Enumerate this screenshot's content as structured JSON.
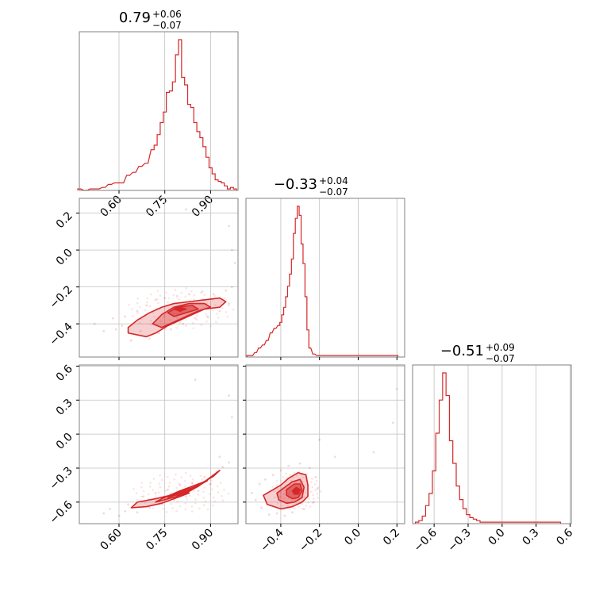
{
  "colors": {
    "accent": "#d62728",
    "grid": "#c0c0c0",
    "frame": "#808080"
  },
  "chart_data": [
    {
      "type": "histogram",
      "parameter_index": 0,
      "title": {
        "value": "0.79",
        "upper": "+0.06",
        "lower": "−0.07"
      },
      "x_ticks": [
        "0.60",
        "0.75",
        "0.90"
      ],
      "xlim": [
        0.47,
        0.99
      ],
      "grid": true,
      "x": [
        0.47,
        0.49,
        0.51,
        0.53,
        0.55,
        0.57,
        0.59,
        0.61,
        0.63,
        0.65,
        0.67,
        0.69,
        0.71,
        0.72,
        0.73,
        0.74,
        0.75,
        0.76,
        0.77,
        0.78,
        0.79,
        0.8,
        0.81,
        0.82,
        0.83,
        0.84,
        0.85,
        0.86,
        0.87,
        0.88,
        0.89,
        0.9,
        0.91,
        0.92,
        0.93,
        0.94,
        0.95,
        0.96,
        0.97,
        0.98
      ],
      "density": [
        0.01,
        0.0,
        0.01,
        0.01,
        0.02,
        0.04,
        0.05,
        0.05,
        0.1,
        0.12,
        0.16,
        0.18,
        0.27,
        0.3,
        0.37,
        0.45,
        0.52,
        0.65,
        0.66,
        0.72,
        0.9,
        1.0,
        0.75,
        0.7,
        0.57,
        0.55,
        0.45,
        0.39,
        0.35,
        0.29,
        0.22,
        0.15,
        0.11,
        0.07,
        0.06,
        0.05,
        0.03,
        0.01,
        0.02,
        0.01
      ]
    },
    {
      "type": "histogram",
      "parameter_index": 1,
      "title": {
        "value": "−0.33",
        "upper": "+0.04",
        "lower": "−0.07"
      },
      "x_ticks": [],
      "xlim": [
        -0.58,
        0.24
      ],
      "grid": true,
      "x": [
        -0.57,
        -0.55,
        -0.53,
        -0.51,
        -0.49,
        -0.47,
        -0.45,
        -0.43,
        -0.41,
        -0.4,
        -0.39,
        -0.38,
        -0.37,
        -0.36,
        -0.35,
        -0.34,
        -0.33,
        -0.32,
        -0.31,
        -0.3,
        -0.29,
        -0.28,
        -0.27,
        -0.26,
        -0.25,
        -0.23,
        -0.21,
        -0.19,
        -0.1,
        0.2
      ],
      "density": [
        0.01,
        0.01,
        0.03,
        0.06,
        0.08,
        0.11,
        0.16,
        0.19,
        0.21,
        0.23,
        0.28,
        0.33,
        0.4,
        0.47,
        0.55,
        0.65,
        0.82,
        0.92,
        1.0,
        0.94,
        0.75,
        0.62,
        0.4,
        0.18,
        0.06,
        0.02,
        0.01,
        0.01,
        0.01,
        0.01
      ]
    },
    {
      "type": "histogram",
      "parameter_index": 2,
      "title": {
        "value": "−0.51",
        "upper": "+0.09",
        "lower": "−0.07"
      },
      "x_ticks": [
        "−0.6",
        "−0.3",
        "0.0",
        "0.3",
        "0.6"
      ],
      "xlim": [
        -0.79,
        0.61
      ],
      "grid": true,
      "x": [
        -0.75,
        -0.72,
        -0.69,
        -0.66,
        -0.63,
        -0.6,
        -0.57,
        -0.54,
        -0.51,
        -0.48,
        -0.45,
        -0.42,
        -0.39,
        -0.36,
        -0.33,
        -0.3,
        -0.27,
        -0.24,
        -0.21,
        -0.18,
        -0.15,
        -0.12,
        0.5
      ],
      "density": [
        0.01,
        0.02,
        0.05,
        0.12,
        0.2,
        0.35,
        0.6,
        0.82,
        1.0,
        0.85,
        0.55,
        0.4,
        0.25,
        0.16,
        0.1,
        0.06,
        0.04,
        0.03,
        0.02,
        0.01,
        0.01,
        0.01,
        0.01
      ]
    },
    {
      "type": "contour",
      "x_parameter": 0,
      "y_parameter": 1,
      "x_ticks": [],
      "y_ticks": [
        "0.2",
        "0.0",
        "−0.2",
        "−0.4"
      ],
      "xlim": [
        0.47,
        0.99
      ],
      "ylim": [
        -0.58,
        0.28
      ],
      "grid": true,
      "peak": [
        0.8,
        -0.32
      ],
      "levels": [
        [
          [
            0.63,
            -0.42
          ],
          [
            0.66,
            -0.38
          ],
          [
            0.7,
            -0.34
          ],
          [
            0.74,
            -0.31
          ],
          [
            0.78,
            -0.29
          ],
          [
            0.83,
            -0.28
          ],
          [
            0.88,
            -0.27
          ],
          [
            0.93,
            -0.26
          ],
          [
            0.95,
            -0.28
          ],
          [
            0.93,
            -0.31
          ],
          [
            0.88,
            -0.32
          ],
          [
            0.84,
            -0.35
          ],
          [
            0.8,
            -0.38
          ],
          [
            0.76,
            -0.41
          ],
          [
            0.72,
            -0.45
          ],
          [
            0.69,
            -0.47
          ],
          [
            0.66,
            -0.46
          ],
          [
            0.63,
            -0.45
          ]
        ],
        [
          [
            0.71,
            -0.4
          ],
          [
            0.74,
            -0.35
          ],
          [
            0.78,
            -0.31
          ],
          [
            0.83,
            -0.29
          ],
          [
            0.88,
            -0.29
          ],
          [
            0.9,
            -0.31
          ],
          [
            0.86,
            -0.33
          ],
          [
            0.82,
            -0.36
          ],
          [
            0.78,
            -0.39
          ],
          [
            0.74,
            -0.42
          ]
        ],
        [
          [
            0.76,
            -0.34
          ],
          [
            0.79,
            -0.31
          ],
          [
            0.84,
            -0.3
          ],
          [
            0.86,
            -0.32
          ],
          [
            0.82,
            -0.34
          ],
          [
            0.78,
            -0.36
          ]
        ],
        [
          [
            0.78,
            -0.32
          ],
          [
            0.8,
            -0.31
          ],
          [
            0.82,
            -0.32
          ],
          [
            0.8,
            -0.33
          ]
        ]
      ],
      "samples": [
        [
          0.52,
          -0.4
        ],
        [
          0.55,
          -0.44
        ],
        [
          0.58,
          -0.37
        ],
        [
          0.59,
          -0.43
        ],
        [
          0.61,
          -0.41
        ],
        [
          0.62,
          -0.36
        ],
        [
          0.64,
          -0.49
        ],
        [
          0.66,
          -0.33
        ],
        [
          0.67,
          -0.44
        ],
        [
          0.69,
          -0.3
        ],
        [
          0.7,
          -0.48
        ],
        [
          0.72,
          -0.27
        ],
        [
          0.73,
          -0.45
        ],
        [
          0.75,
          -0.26
        ],
        [
          0.77,
          -0.43
        ],
        [
          0.79,
          -0.25
        ],
        [
          0.81,
          -0.4
        ],
        [
          0.83,
          -0.24
        ],
        [
          0.85,
          -0.37
        ],
        [
          0.87,
          -0.23
        ],
        [
          0.89,
          -0.36
        ],
        [
          0.91,
          -0.24
        ],
        [
          0.93,
          -0.33
        ],
        [
          0.95,
          -0.22
        ],
        [
          0.96,
          -0.29
        ],
        [
          0.97,
          -0.2
        ],
        [
          0.82,
          0.22
        ],
        [
          0.96,
          0.13
        ],
        [
          0.97,
          0.0
        ],
        [
          0.98,
          -0.07
        ]
      ]
    },
    {
      "type": "contour",
      "x_parameter": 0,
      "y_parameter": 2,
      "x_ticks": [
        "0.60",
        "0.75",
        "0.90"
      ],
      "y_ticks": [
        "0.6",
        "0.3",
        "0.0",
        "−0.3",
        "−0.6"
      ],
      "xlim": [
        0.47,
        0.99
      ],
      "ylim": [
        -0.79,
        0.61
      ],
      "grid": true,
      "peak": [
        0.8,
        -0.52
      ],
      "levels": [
        [
          [
            0.64,
            -0.65
          ],
          [
            0.66,
            -0.6
          ],
          [
            0.72,
            -0.57
          ],
          [
            0.8,
            -0.52
          ],
          [
            0.86,
            -0.45
          ],
          [
            0.91,
            -0.37
          ],
          [
            0.93,
            -0.32
          ],
          [
            0.91,
            -0.36
          ],
          [
            0.86,
            -0.46
          ],
          [
            0.8,
            -0.55
          ],
          [
            0.74,
            -0.61
          ],
          [
            0.69,
            -0.64
          ]
        ],
        [
          [
            0.72,
            -0.6
          ],
          [
            0.79,
            -0.55
          ],
          [
            0.85,
            -0.47
          ],
          [
            0.89,
            -0.41
          ],
          [
            0.86,
            -0.44
          ],
          [
            0.8,
            -0.5
          ],
          [
            0.74,
            -0.57
          ]
        ],
        [
          [
            0.76,
            -0.56
          ],
          [
            0.82,
            -0.51
          ],
          [
            0.86,
            -0.46
          ],
          [
            0.83,
            -0.48
          ],
          [
            0.78,
            -0.53
          ]
        ],
        [
          [
            0.79,
            -0.54
          ],
          [
            0.82,
            -0.51
          ],
          [
            0.83,
            -0.52
          ],
          [
            0.8,
            -0.55
          ]
        ]
      ],
      "samples": [
        [
          0.55,
          -0.7
        ],
        [
          0.57,
          -0.66
        ],
        [
          0.6,
          -0.72
        ],
        [
          0.62,
          -0.68
        ],
        [
          0.63,
          -0.62
        ],
        [
          0.66,
          -0.69
        ],
        [
          0.68,
          -0.55
        ],
        [
          0.7,
          -0.65
        ],
        [
          0.72,
          -0.52
        ],
        [
          0.74,
          -0.61
        ],
        [
          0.76,
          -0.49
        ],
        [
          0.78,
          -0.58
        ],
        [
          0.8,
          -0.45
        ],
        [
          0.82,
          -0.55
        ],
        [
          0.84,
          -0.43
        ],
        [
          0.86,
          -0.5
        ],
        [
          0.88,
          -0.38
        ],
        [
          0.9,
          -0.44
        ],
        [
          0.92,
          -0.33
        ],
        [
          0.94,
          -0.29
        ],
        [
          0.96,
          -0.25
        ],
        [
          0.85,
          0.48
        ],
        [
          0.96,
          0.34
        ],
        [
          0.97,
          0.15
        ],
        [
          0.93,
          -0.2
        ]
      ]
    },
    {
      "type": "contour",
      "x_parameter": 1,
      "y_parameter": 2,
      "x_ticks": [
        "−0.4",
        "−0.2",
        "0.0",
        "0.2"
      ],
      "y_ticks": [],
      "xlim": [
        -0.58,
        0.24
      ],
      "ylim": [
        -0.79,
        0.61
      ],
      "grid": true,
      "peak": [
        -0.32,
        -0.5
      ],
      "levels": [
        [
          [
            -0.47,
            -0.62
          ],
          [
            -0.49,
            -0.54
          ],
          [
            -0.44,
            -0.49
          ],
          [
            -0.4,
            -0.45
          ],
          [
            -0.36,
            -0.39
          ],
          [
            -0.31,
            -0.34
          ],
          [
            -0.27,
            -0.36
          ],
          [
            -0.26,
            -0.45
          ],
          [
            -0.26,
            -0.55
          ],
          [
            -0.29,
            -0.6
          ],
          [
            -0.34,
            -0.64
          ],
          [
            -0.4,
            -0.66
          ]
        ],
        [
          [
            -0.41,
            -0.58
          ],
          [
            -0.42,
            -0.52
          ],
          [
            -0.38,
            -0.47
          ],
          [
            -0.34,
            -0.42
          ],
          [
            -0.3,
            -0.4
          ],
          [
            -0.28,
            -0.47
          ],
          [
            -0.29,
            -0.56
          ],
          [
            -0.33,
            -0.6
          ],
          [
            -0.37,
            -0.61
          ]
        ],
        [
          [
            -0.37,
            -0.54
          ],
          [
            -0.37,
            -0.49
          ],
          [
            -0.33,
            -0.44
          ],
          [
            -0.3,
            -0.44
          ],
          [
            -0.29,
            -0.5
          ],
          [
            -0.31,
            -0.56
          ],
          [
            -0.34,
            -0.57
          ]
        ],
        [
          [
            -0.34,
            -0.5
          ],
          [
            -0.32,
            -0.47
          ],
          [
            -0.3,
            -0.49
          ],
          [
            -0.31,
            -0.53
          ],
          [
            -0.33,
            -0.53
          ]
        ]
      ],
      "samples": [
        [
          -0.55,
          -0.52
        ],
        [
          -0.53,
          -0.58
        ],
        [
          -0.51,
          -0.44
        ],
        [
          -0.5,
          -0.65
        ],
        [
          -0.48,
          -0.4
        ],
        [
          -0.46,
          -0.71
        ],
        [
          -0.44,
          -0.36
        ],
        [
          -0.42,
          -0.7
        ],
        [
          -0.4,
          -0.32
        ],
        [
          -0.38,
          -0.72
        ],
        [
          -0.36,
          -0.28
        ],
        [
          -0.34,
          -0.69
        ],
        [
          -0.3,
          -0.26
        ],
        [
          -0.28,
          -0.66
        ],
        [
          -0.25,
          -0.3
        ],
        [
          -0.23,
          -0.6
        ],
        [
          -0.22,
          -0.38
        ],
        [
          -0.21,
          -0.48
        ],
        [
          -0.2,
          -0.05
        ],
        [
          -0.12,
          -0.2
        ],
        [
          0.08,
          -0.16
        ],
        [
          0.2,
          0.4
        ],
        [
          0.18,
          0.1
        ]
      ]
    }
  ]
}
